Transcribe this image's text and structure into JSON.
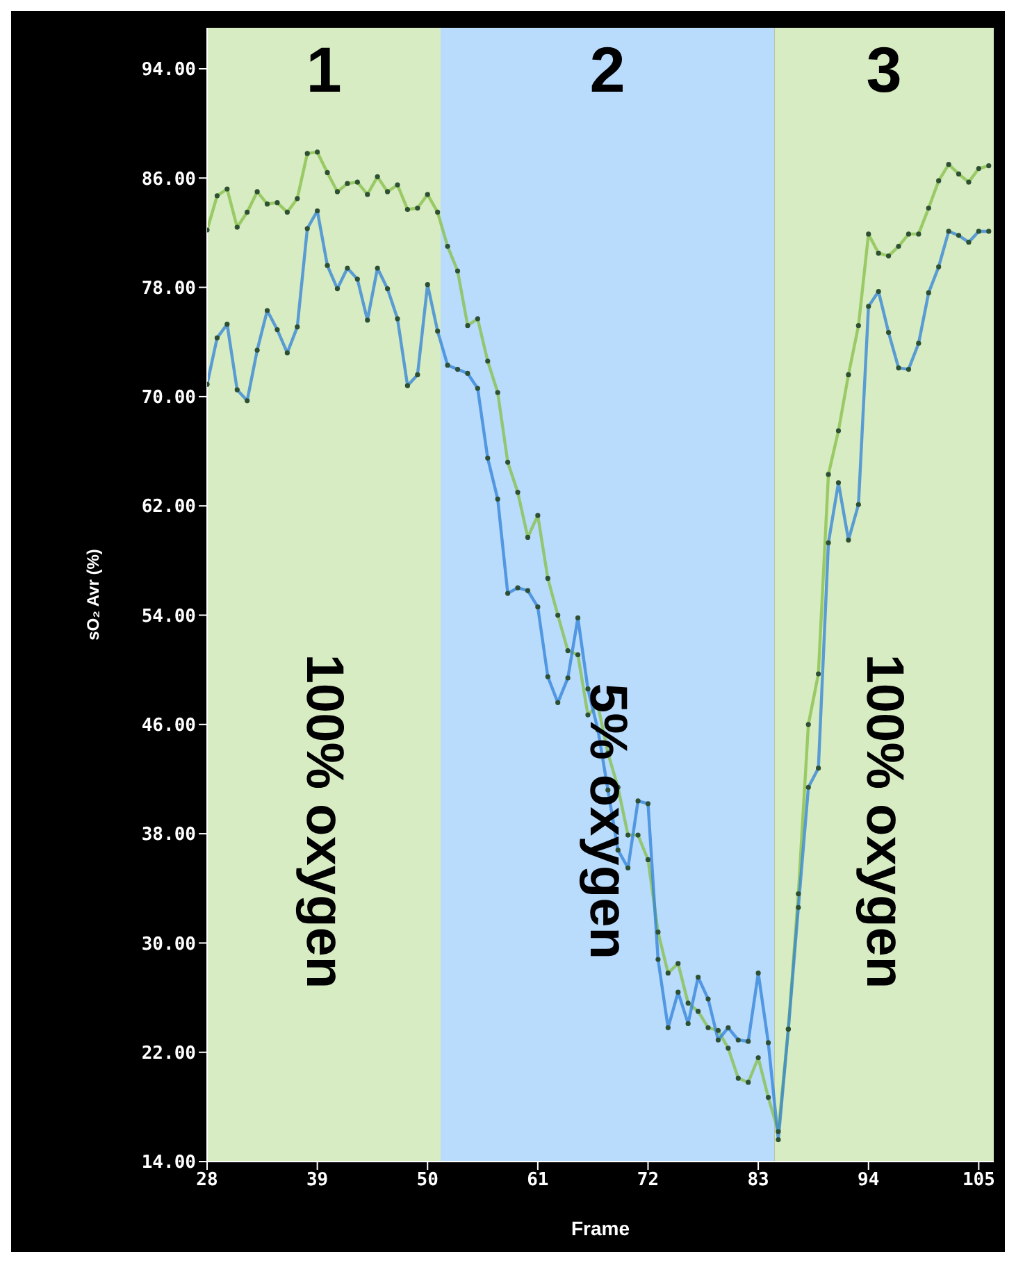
{
  "chart_data": {
    "type": "line",
    "xlabel": "Frame",
    "ylabel": "sO₂ Avr (%)",
    "x": [
      28,
      29,
      30,
      31,
      32,
      33,
      34,
      35,
      36,
      37,
      38,
      39,
      40,
      41,
      42,
      43,
      44,
      45,
      46,
      47,
      48,
      49,
      50,
      51,
      52,
      53,
      54,
      55,
      56,
      57,
      58,
      59,
      60,
      61,
      62,
      63,
      64,
      65,
      66,
      67,
      68,
      69,
      70,
      71,
      72,
      73,
      74,
      75,
      76,
      77,
      78,
      79,
      80,
      81,
      82,
      83,
      84,
      85,
      86,
      87,
      88,
      89,
      90,
      91,
      92,
      93,
      94,
      95,
      96,
      97,
      98,
      99,
      100,
      101,
      102,
      103,
      104,
      105,
      106
    ],
    "series": [
      {
        "color": "#86bf45",
        "values": [
          82.2,
          84.7,
          85.2,
          82.4,
          83.5,
          85.0,
          84.1,
          84.2,
          83.5,
          84.5,
          87.8,
          87.9,
          86.4,
          85.0,
          85.6,
          85.7,
          84.8,
          86.1,
          85.0,
          85.5,
          83.7,
          83.8,
          84.8,
          83.5,
          81.0,
          79.2,
          75.2,
          75.7,
          72.6,
          70.3,
          65.2,
          63.0,
          59.7,
          61.3,
          56.7,
          54.0,
          51.4,
          51.1,
          46.7,
          47.4,
          43.9,
          41.4,
          37.9,
          37.9,
          36.1,
          30.8,
          27.8,
          28.5,
          25.6,
          25.0,
          23.8,
          23.6,
          22.3,
          20.1,
          19.8,
          21.6,
          18.7,
          16.2,
          23.7,
          33.6,
          46.0,
          49.7,
          64.3,
          67.5,
          71.6,
          75.2,
          81.9,
          80.5,
          80.3,
          81.0,
          81.9,
          81.9,
          83.8,
          85.8,
          87.0,
          86.3,
          85.7,
          86.7,
          86.9
        ]
      },
      {
        "color": "#2f80d8",
        "values": [
          70.9,
          74.3,
          75.3,
          70.5,
          69.7,
          73.4,
          76.3,
          74.9,
          73.2,
          75.1,
          82.3,
          83.6,
          79.6,
          77.9,
          79.4,
          78.6,
          75.6,
          79.4,
          77.9,
          75.7,
          70.8,
          71.6,
          78.2,
          74.8,
          72.3,
          72.0,
          71.7,
          70.6,
          65.5,
          62.5,
          55.6,
          56.0,
          55.8,
          54.6,
          49.5,
          47.6,
          49.4,
          53.8,
          48.6,
          45.6,
          41.2,
          36.8,
          35.5,
          40.4,
          40.2,
          28.8,
          23.8,
          26.4,
          24.1,
          27.5,
          25.9,
          22.9,
          23.8,
          22.9,
          22.8,
          27.8,
          22.7,
          15.6,
          23.7,
          32.6,
          41.4,
          42.8,
          59.3,
          63.7,
          59.5,
          62.1,
          76.6,
          77.7,
          74.7,
          72.1,
          72.0,
          73.9,
          77.6,
          79.5,
          82.1,
          81.8,
          81.3,
          82.1,
          82.1
        ]
      }
    ],
    "xlim": [
      28,
      106.5
    ],
    "xticks": [
      28,
      39,
      50,
      61,
      72,
      83,
      94,
      105
    ],
    "ylim": [
      14,
      97
    ],
    "yticks": [
      {
        "value": 14,
        "label": "14.00"
      },
      {
        "value": 22,
        "label": "22.00"
      },
      {
        "value": 30,
        "label": "30.00"
      },
      {
        "value": 38,
        "label": "38.00"
      },
      {
        "value": 46,
        "label": "46.00"
      },
      {
        "value": 54,
        "label": "54.00"
      },
      {
        "value": 62,
        "label": "62.00"
      },
      {
        "value": 70,
        "label": "70.00"
      },
      {
        "value": 78,
        "label": "78.00"
      },
      {
        "value": 86,
        "label": "86.00"
      },
      {
        "value": 94,
        "label": "94.00"
      }
    ],
    "bands": [
      {
        "axis": "x",
        "from": 28,
        "to": 51.3,
        "label": "1",
        "color": "#d7ecc2"
      },
      {
        "axis": "x",
        "from": 51.3,
        "to": 84.6,
        "label": "2",
        "color": "#badcfc"
      },
      {
        "axis": "x",
        "from": 84.6,
        "to": 106.5,
        "label": "3",
        "color": "#d7ecc2"
      }
    ],
    "annotations": [
      "100% oxygen",
      "5% oxygen",
      "100% oxygen"
    ],
    "marker": "circle",
    "line_style": "solid",
    "grid": false,
    "legend": false
  }
}
